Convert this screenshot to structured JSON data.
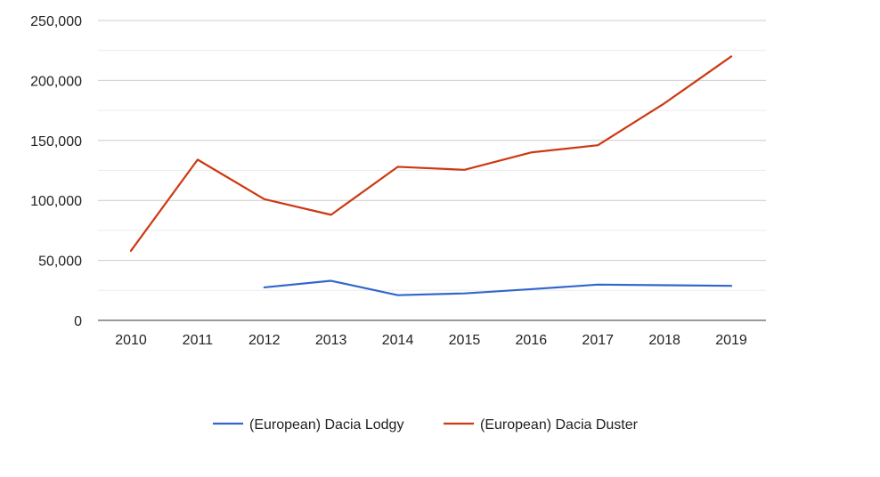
{
  "chart_data": {
    "type": "line",
    "title": "",
    "xlabel": "",
    "ylabel": "",
    "x": [
      "2010",
      "2011",
      "2012",
      "2013",
      "2014",
      "2015",
      "2016",
      "2017",
      "2018",
      "2019"
    ],
    "ylim": [
      0,
      250000
    ],
    "yticks": [
      0,
      50000,
      100000,
      150000,
      200000,
      250000
    ],
    "ytick_labels": [
      "0",
      "50,000",
      "100,000",
      "150,000",
      "200,000",
      "250,000"
    ],
    "grid": true,
    "legend_position": "bottom",
    "series": [
      {
        "name": "(European) Dacia Lodgy",
        "color": "#3366cc",
        "values": [
          null,
          null,
          27500,
          33000,
          21000,
          22500,
          26000,
          29800,
          29300,
          28800
        ]
      },
      {
        "name": "(European) Dacia Duster",
        "color": "#cc3912",
        "values": [
          58000,
          134000,
          101000,
          88000,
          128000,
          125500,
          140000,
          146000,
          181000,
          220000
        ]
      }
    ]
  }
}
